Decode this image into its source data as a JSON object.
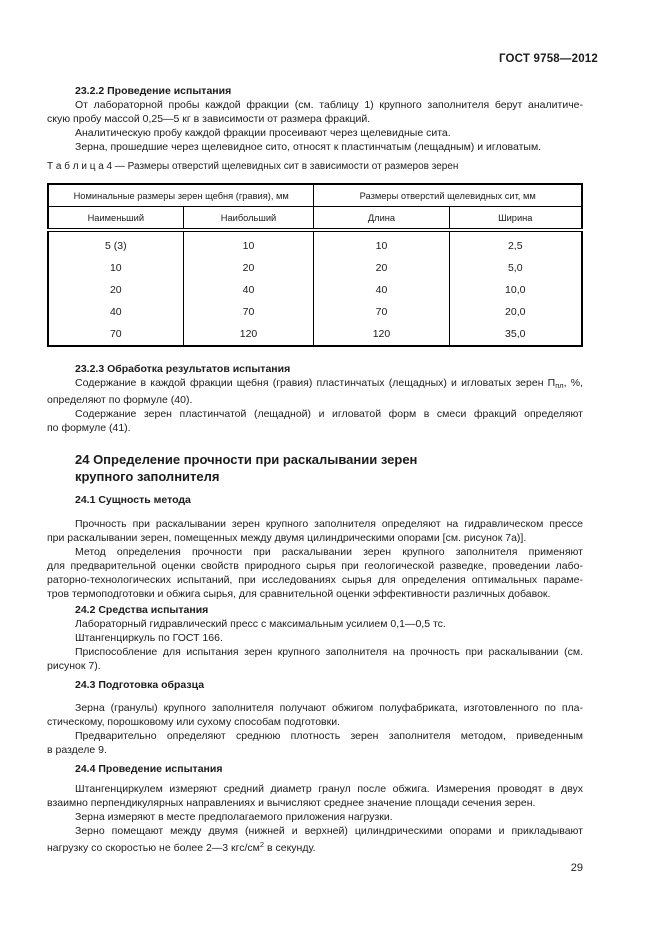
{
  "header": {
    "doc_code": "ГОСТ 9758—2012"
  },
  "footer": {
    "page_number": "29"
  },
  "s2322": {
    "title": "23.2.2 Проведение испытания",
    "p1": [
      "От лабораторной пробы каждой фракции (см. таблицу 1) крупного заполнителя берут аналитиче-",
      "скую пробу массой 0,25—5 кг в зависимости от размера фракций."
    ],
    "p2": [
      "Аналитическую пробу каждой фракции просеивают через щелевидные сита."
    ],
    "p3": [
      "Зерна, прошедшие через щелевидное сито, относят к пластинчатым (лещадным) и игловатым."
    ]
  },
  "table4": {
    "caption": "Т а б л и ц а  4 — Размеры отверстий щелевидных сит в зависимости от размеров зерен",
    "group_headers": [
      "Номинальные размеры зерен щебня (гравия), мм",
      "Размеры отверстий щелевидных сит, мм"
    ],
    "col_headers": [
      "Наименьший",
      "Наибольший",
      "Длина",
      "Ширина"
    ],
    "rows": [
      [
        "5 (3)",
        "10",
        "10",
        "2,5"
      ],
      [
        "10",
        "20",
        "20",
        "5,0"
      ],
      [
        "20",
        "40",
        "40",
        "10,0"
      ],
      [
        "40",
        "70",
        "70",
        "20,0"
      ],
      [
        "70",
        "120",
        "120",
        "35,0"
      ]
    ]
  },
  "s2323": {
    "title": "23.2.3 Обработка результатов испытания",
    "p1_before": "Содержание в каждой фракции щебня (гравия) пластинчатых (лещадных) и игловатых зерен П",
    "p1_sub": "пл",
    "p1_after": ", %,",
    "p1_line2": "определяют по формуле (40).",
    "p2": [
      "Содержание зерен пластинчатой (лещадной) и игловатой форм в смеси фракций определяют",
      "по формуле (41)."
    ]
  },
  "s24": {
    "title_line1": "24 Определение прочности при раскалывании зерен",
    "title_line2": "крупного заполнителя"
  },
  "s241": {
    "title": "24.1 Сущность метода",
    "p1": [
      "Прочность при раскалывании зерен крупного заполнителя определяют на гидравлическом прессе",
      "при раскалывании зерен, помещенных между двумя цилиндрическими опорами [см. рисунок 7а)]."
    ],
    "p2": [
      "Метод определения прочности при раскалывании зерен крупного заполнителя применяют",
      "для предварительной оценки свойств природного сырья при геологической разведке, проведении лабо-",
      "раторно-технологических испытаний, при исследованиях сырья для определения оптимальных параме-",
      "тров термоподготовки и обжига сырья, для сравнительной оценки эффективности различных добавок."
    ]
  },
  "s242": {
    "title": "24.2 Средства испытания",
    "p1": [
      "Лабораторный гидравлический пресс с максимальным усилием 0,1—0,5 тс."
    ],
    "p2": [
      "Штангенциркуль по ГОСТ 166."
    ],
    "p3": [
      "Приспособление для испытания зерен крупного заполнителя на прочность при раскалывании (см.",
      "рисунок 7)."
    ]
  },
  "s243": {
    "title": "24.3 Подготовка образца",
    "p1": [
      "Зерна (гранулы) крупного заполнителя получают обжигом полуфабриката, изготовленного по пла-",
      "стическому, порошковому или сухому способам подготовки."
    ],
    "p2": [
      "Предварительно определяют среднюю плотность зерен заполнителя методом, приведенным",
      "в разделе 9."
    ]
  },
  "s244": {
    "title": "24.4 Проведение испытания",
    "p1": [
      "Штангенциркулем измеряют средний диаметр гранул после обжига. Измерения проводят в двух",
      "взаимно перпендикулярных направлениях и вычисляют среднее значение площади сечения зерен."
    ],
    "p2": [
      "Зерна измеряют в месте предполагаемого приложения нагрузки."
    ],
    "p3_line1": "Зерно помещают между двумя (нижней и верхней) цилиндрическими опорами и прикладывают",
    "p3_l2_before": "нагрузку со скоростью не более 2—3 кгс/см",
    "p3_sup": "2",
    "p3_l2_after": " в секунду."
  }
}
